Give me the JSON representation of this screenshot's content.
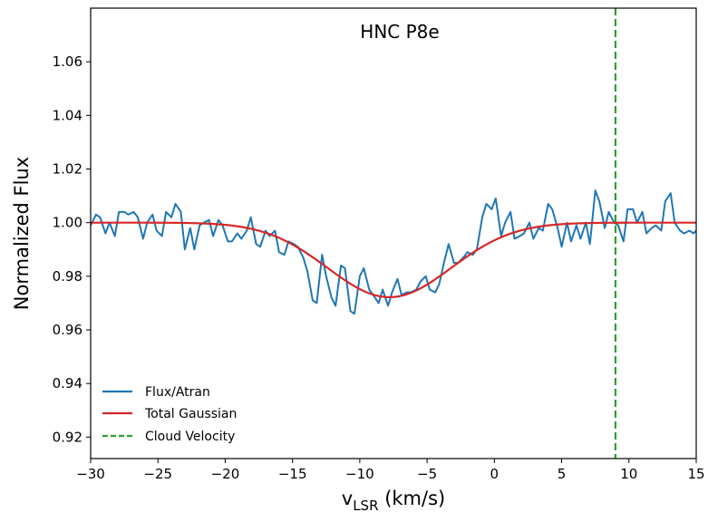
{
  "chart_data": {
    "type": "line",
    "title": "HNC P8e",
    "xlabel_main": "v",
    "xlabel_sub": "LSR",
    "xlabel_unit": " (km/s)",
    "ylabel": "Normalized Flux",
    "xlim": [
      -30,
      15
    ],
    "ylim": [
      0.912,
      1.08
    ],
    "xticks": [
      -30,
      -25,
      -20,
      -15,
      -10,
      -5,
      0,
      5,
      10,
      15
    ],
    "xtick_labels": [
      "−30",
      "−25",
      "−20",
      "−15",
      "−10",
      "−5",
      "0",
      "5",
      "10",
      "15"
    ],
    "yticks": [
      0.92,
      0.94,
      0.96,
      0.98,
      1.0,
      1.02,
      1.04,
      1.06
    ],
    "ytick_labels": [
      "0.92",
      "0.94",
      "0.96",
      "0.98",
      "1.00",
      "1.02",
      "1.04",
      "1.06"
    ],
    "grid": false,
    "legend_position": "lower-left",
    "series": [
      {
        "name": "Flux/Atran",
        "color": "#1f77b4",
        "style": "solid",
        "x": [
          -30.0,
          -29.6,
          -29.3,
          -28.9,
          -28.6,
          -28.2,
          -27.9,
          -27.5,
          -27.2,
          -26.8,
          -26.5,
          -26.1,
          -25.8,
          -25.4,
          -25.1,
          -24.7,
          -24.4,
          -24.0,
          -23.7,
          -23.3,
          -23.0,
          -22.6,
          -22.3,
          -21.9,
          -21.6,
          -21.2,
          -20.9,
          -20.5,
          -20.2,
          -19.8,
          -19.5,
          -19.1,
          -18.8,
          -18.4,
          -18.1,
          -17.7,
          -17.4,
          -17.0,
          -16.7,
          -16.3,
          -16.0,
          -15.6,
          -15.3,
          -14.9,
          -14.6,
          -14.2,
          -13.9,
          -13.5,
          -13.2,
          -12.8,
          -12.5,
          -12.1,
          -11.8,
          -11.4,
          -11.1,
          -10.7,
          -10.4,
          -10.0,
          -9.7,
          -9.3,
          -9.0,
          -8.6,
          -8.3,
          -7.9,
          -7.6,
          -7.2,
          -6.9,
          -6.5,
          -6.2,
          -5.8,
          -5.5,
          -5.1,
          -4.8,
          -4.4,
          -4.1,
          -3.7,
          -3.4,
          -3.0,
          -2.7,
          -2.3,
          -2.0,
          -1.6,
          -1.3,
          -0.9,
          -0.6,
          -0.2,
          0.1,
          0.5,
          0.8,
          1.2,
          1.5,
          1.9,
          2.2,
          2.6,
          2.9,
          3.3,
          3.6,
          4.0,
          4.3,
          4.7,
          5.0,
          5.4,
          5.7,
          6.1,
          6.4,
          6.8,
          7.1,
          7.5,
          7.8,
          8.2,
          8.5,
          8.9,
          9.2,
          9.6,
          9.9,
          10.3,
          10.6,
          11.0,
          11.3,
          11.7,
          12.0,
          12.4,
          12.7,
          13.1,
          13.4,
          13.8,
          14.1,
          14.5,
          14.8,
          15.0
        ],
        "y": [
          0.999,
          1.003,
          1.002,
          0.996,
          1.0,
          0.995,
          1.004,
          1.004,
          1.003,
          1.004,
          1.002,
          0.994,
          1.0,
          1.003,
          0.997,
          0.995,
          1.004,
          1.002,
          1.007,
          1.004,
          0.99,
          0.998,
          0.99,
          0.999,
          1.0,
          1.001,
          0.995,
          1.001,
          0.999,
          0.993,
          0.993,
          0.996,
          0.994,
          0.997,
          1.002,
          0.992,
          0.991,
          0.997,
          0.995,
          0.997,
          0.989,
          0.988,
          0.993,
          0.992,
          0.991,
          0.987,
          0.982,
          0.971,
          0.97,
          0.988,
          0.98,
          0.972,
          0.969,
          0.984,
          0.983,
          0.967,
          0.966,
          0.98,
          0.983,
          0.975,
          0.973,
          0.97,
          0.975,
          0.969,
          0.974,
          0.979,
          0.973,
          0.974,
          0.974,
          0.975,
          0.978,
          0.98,
          0.975,
          0.974,
          0.977,
          0.986,
          0.992,
          0.985,
          0.985,
          0.987,
          0.989,
          0.988,
          0.99,
          1.002,
          1.007,
          1.005,
          1.009,
          0.995,
          1.0,
          1.004,
          0.994,
          0.995,
          0.996,
          1.0,
          0.994,
          0.998,
          0.997,
          1.007,
          1.005,
          0.998,
          0.991,
          1.0,
          0.993,
          0.999,
          0.994,
          1.0,
          0.992,
          1.012,
          1.008,
          0.998,
          1.004,
          1.0,
          0.999,
          0.993,
          1.005,
          1.005,
          1.0,
          1.004,
          0.996,
          0.998,
          0.999,
          0.997,
          1.008,
          1.011,
          1.0,
          0.997,
          0.996,
          0.997,
          0.996,
          0.997
        ]
      },
      {
        "name": "Total Gaussian",
        "color": "#d62728",
        "style": "solid",
        "gaussian": {
          "baseline": 1.0,
          "depth": 0.0278,
          "center": -7.8,
          "sigma": 4.6
        }
      },
      {
        "name": "Cloud Velocity",
        "color": "#2ca02c",
        "style": "dashed",
        "vertical_x": 9.0
      }
    ]
  }
}
